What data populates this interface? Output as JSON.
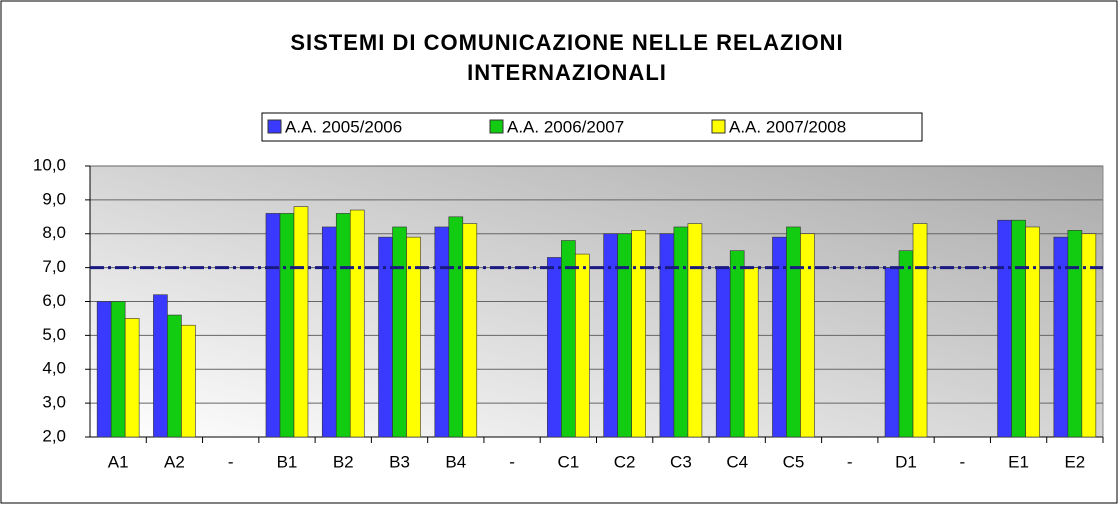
{
  "chart_data": {
    "type": "bar",
    "title": [
      "SISTEMI DI COMUNICAZIONE NELLE RELAZIONI",
      "INTERNAZIONALI"
    ],
    "categories": [
      "A1",
      "A2",
      "-",
      "B1",
      "B2",
      "B3",
      "B4",
      "-",
      "C1",
      "C2",
      "C3",
      "C4",
      "C5",
      "-",
      "D1",
      "-",
      "E1",
      "E2"
    ],
    "series": [
      {
        "name": "A.A. 2005/2006",
        "color": "#3a3aff",
        "values": [
          6.0,
          6.2,
          null,
          8.6,
          8.2,
          7.9,
          8.2,
          null,
          7.3,
          8.0,
          8.0,
          7.0,
          7.9,
          null,
          7.0,
          null,
          8.4,
          7.9
        ]
      },
      {
        "name": "A.A. 2006/2007",
        "color": "#11cc11",
        "values": [
          6.0,
          5.6,
          null,
          8.6,
          8.6,
          8.2,
          8.5,
          null,
          7.8,
          8.0,
          8.2,
          7.5,
          8.2,
          null,
          7.5,
          null,
          8.4,
          8.1
        ]
      },
      {
        "name": "A.A. 2007/2008",
        "color": "#ffff00",
        "values": [
          5.5,
          5.3,
          null,
          8.8,
          8.7,
          7.9,
          8.3,
          null,
          7.4,
          8.1,
          8.3,
          7.0,
          8.0,
          null,
          8.3,
          null,
          8.2,
          8.0
        ]
      }
    ],
    "ylim": [
      2,
      10
    ],
    "yticks": [
      {
        "value": 2,
        "label": "2,0"
      },
      {
        "value": 3,
        "label": "3,0"
      },
      {
        "value": 4,
        "label": "4,0"
      },
      {
        "value": 5,
        "label": "5,0"
      },
      {
        "value": 6,
        "label": "6,0"
      },
      {
        "value": 7,
        "label": "7,0"
      },
      {
        "value": 8,
        "label": "8,0"
      },
      {
        "value": 9,
        "label": "9,0"
      },
      {
        "value": 10,
        "label": "10,0"
      }
    ],
    "grid": true,
    "reference_line": {
      "value": 7,
      "color": "#1a1a80"
    },
    "legend": "top"
  }
}
